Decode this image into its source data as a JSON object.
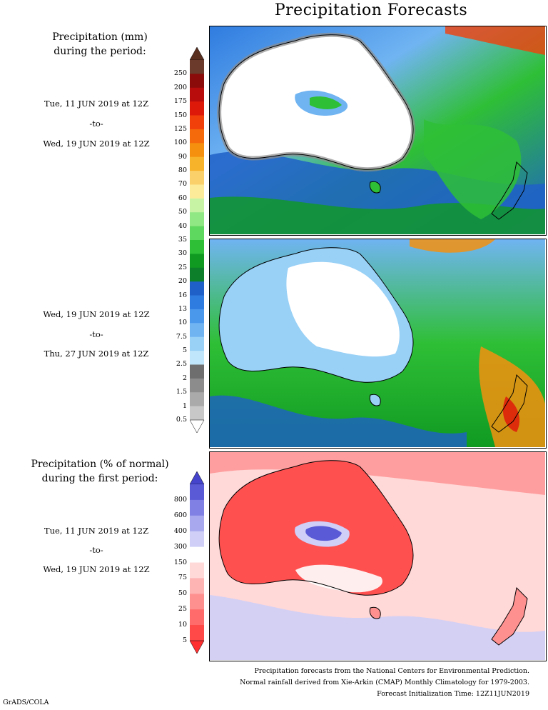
{
  "title": "Precipitation Forecasts",
  "upper_header": [
    "Precipitation (mm)",
    "during the period:"
  ],
  "period1": {
    "start": "Tue, 11 JUN 2019 at 12Z",
    "sep": "-to-",
    "end": "Wed, 19 JUN 2019 at 12Z"
  },
  "period2": {
    "start": "Wed, 19 JUN 2019 at 12Z",
    "sep": "-to-",
    "end": "Thu, 27 JUN 2019 at 12Z"
  },
  "lower_header": [
    "Precipitation (% of normal)",
    "during the first period:"
  ],
  "period3": {
    "start": "Tue, 11 JUN 2019 at 12Z",
    "sep": "-to-",
    "end": "Wed, 19 JUN 2019 at 12Z"
  },
  "mm_scale": {
    "labels": [
      "250",
      "200",
      "175",
      "150",
      "125",
      "100",
      "90",
      "80",
      "70",
      "60",
      "50",
      "40",
      "35",
      "30",
      "25",
      "20",
      "16",
      "13",
      "10",
      "7.5",
      "5",
      "2.5",
      "2",
      "1.5",
      "1",
      "0.5"
    ],
    "colors": [
      "#6b3a2a",
      "#8b0a0a",
      "#b80c0c",
      "#dd1a0a",
      "#f2400a",
      "#f56a0a",
      "#f5900f",
      "#f7b32a",
      "#fad06a",
      "#fcec9a",
      "#c6f4a4",
      "#90e884",
      "#5ed85e",
      "#2fbf36",
      "#109a22",
      "#0d7f2a",
      "#1e60c8",
      "#2f7ce0",
      "#4a98ec",
      "#70b4f2",
      "#98d0f6",
      "#c0e6fb",
      "#6e6e6e",
      "#8c8c8c",
      "#aaaaaa",
      "#c8c8c8"
    ],
    "top_color": "#5a3020"
  },
  "pct_scale": {
    "labels": [
      "800",
      "600",
      "400",
      "300",
      "150",
      "75",
      "50",
      "25",
      "10",
      "5"
    ],
    "colors": [
      "#5a5ad6",
      "#8080e4",
      "#a8a8ee",
      "#cfcff7",
      "#ffffff",
      "#ffd8d8",
      "#ffb4b4",
      "#ff9090",
      "#ff6a6a",
      "#ff4848"
    ],
    "top_color": "#4444cc",
    "bottom_color": "#ff3030"
  },
  "footer": [
    "Precipitation forecasts from the National Centers for Environmental Prediction.",
    "Normal rainfall derived from Xie-Arkin (CMAP) Monthly Climatology for 1979-2003.",
    "Forecast Initialization Time: 12Z11JUN2019"
  ],
  "credit": "GrADS/COLA"
}
